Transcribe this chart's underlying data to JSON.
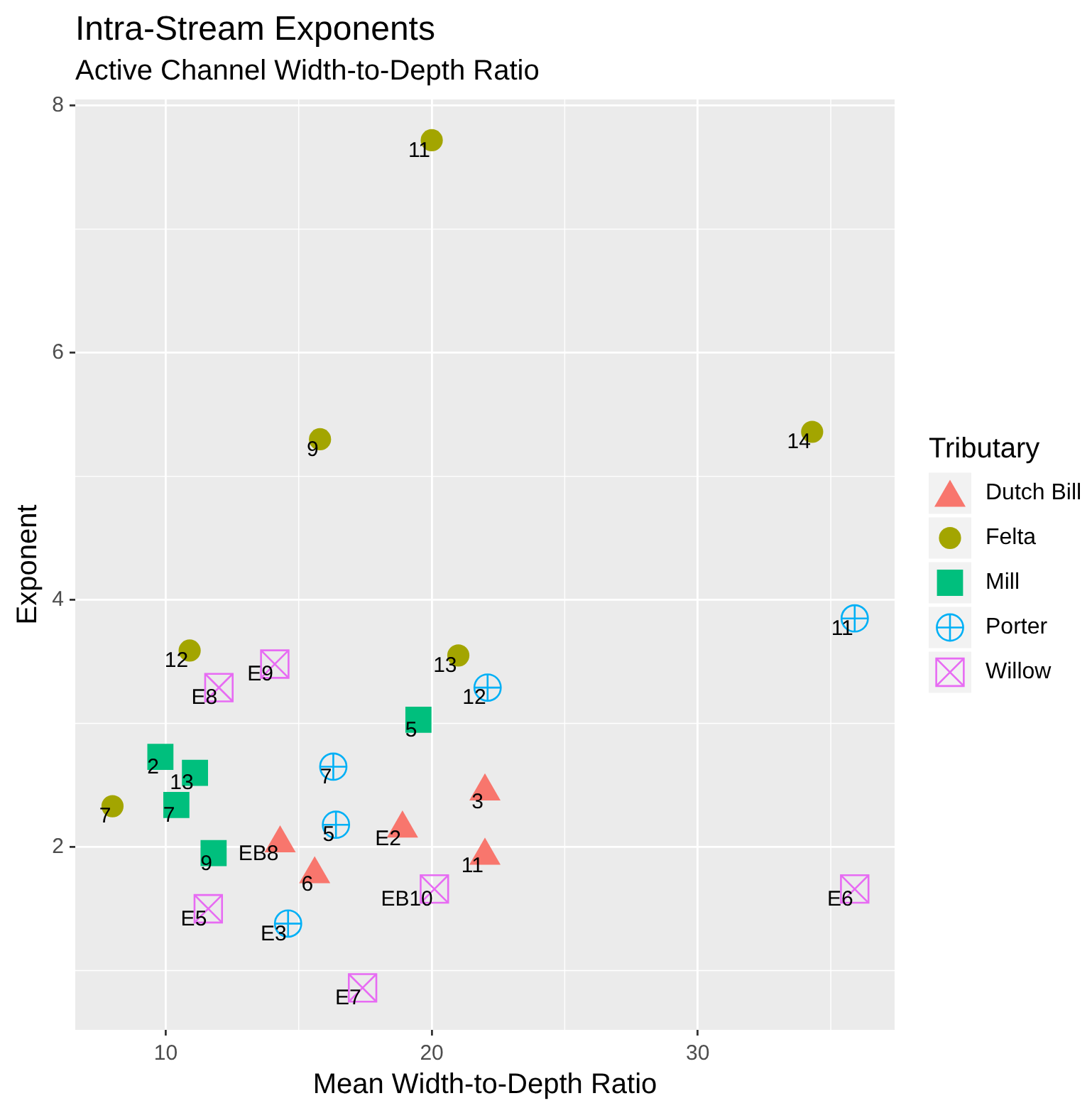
{
  "chart_data": {
    "type": "scatter",
    "title": "Intra-Stream Exponents",
    "subtitle": "Active Channel Width-to-Depth Ratio",
    "xlabel": "Mean Width-to-Depth Ratio",
    "ylabel": "Exponent",
    "legend_title": "Tributary",
    "legend": "right",
    "grid": true,
    "xlim": [
      6.6,
      37.4
    ],
    "ylim": [
      0.52,
      8.05
    ],
    "xticks": [
      10,
      20,
      30
    ],
    "yticks": [
      2,
      4,
      6,
      8
    ],
    "series": [
      {
        "name": "Dutch Bill",
        "color": "#f8766d",
        "marker": "triangle",
        "x": [
          14.3,
          15.6,
          18.9,
          22.0,
          22.0
        ],
        "values": [
          2.03,
          1.78,
          2.15,
          2.45,
          1.93
        ]
      },
      {
        "name": "Felta",
        "color": "#a3a500",
        "marker": "circle",
        "x": [
          20.0,
          15.8,
          34.3,
          10.9,
          21.0,
          8.0
        ],
        "values": [
          7.72,
          5.3,
          5.36,
          3.59,
          3.55,
          2.33
        ]
      },
      {
        "name": "Mill",
        "color": "#00bf7d",
        "marker": "square",
        "x": [
          19.5,
          9.8,
          11.1,
          10.4,
          11.8
        ],
        "values": [
          3.03,
          2.73,
          2.6,
          2.34,
          1.95
        ]
      },
      {
        "name": "Porter",
        "color": "#00b0f6",
        "marker": "circle-plus",
        "x": [
          35.9,
          22.1,
          16.3,
          16.4,
          14.6
        ],
        "values": [
          3.85,
          3.29,
          2.65,
          2.18,
          1.38
        ]
      },
      {
        "name": "Willow",
        "color": "#e76bf3",
        "marker": "square-x",
        "x": [
          14.1,
          12.0,
          20.1,
          35.9,
          11.6,
          17.4
        ],
        "values": [
          3.48,
          3.29,
          1.66,
          1.66,
          1.5,
          0.86
        ]
      }
    ],
    "annotations": [
      {
        "text": "EB8",
        "x": 14.3,
        "y": 2.03
      },
      {
        "text": "6",
        "x": 15.6,
        "y": 1.78
      },
      {
        "text": "E2",
        "x": 18.9,
        "y": 2.15
      },
      {
        "text": "3",
        "x": 22.0,
        "y": 2.45
      },
      {
        "text": "11",
        "x": 22.0,
        "y": 1.93
      },
      {
        "text": "11",
        "x": 20.0,
        "y": 7.72
      },
      {
        "text": "9",
        "x": 15.8,
        "y": 5.3
      },
      {
        "text": "14",
        "x": 34.3,
        "y": 5.36
      },
      {
        "text": "12",
        "x": 10.9,
        "y": 3.59
      },
      {
        "text": "13",
        "x": 21.0,
        "y": 3.55
      },
      {
        "text": "7",
        "x": 8.0,
        "y": 2.33
      },
      {
        "text": "5",
        "x": 19.5,
        "y": 3.03
      },
      {
        "text": "2",
        "x": 9.8,
        "y": 2.73
      },
      {
        "text": "13",
        "x": 11.1,
        "y": 2.6
      },
      {
        "text": "7",
        "x": 10.4,
        "y": 2.34
      },
      {
        "text": "9",
        "x": 11.8,
        "y": 1.95
      },
      {
        "text": "11",
        "x": 35.9,
        "y": 3.85
      },
      {
        "text": "12",
        "x": 22.1,
        "y": 3.29
      },
      {
        "text": "7",
        "x": 16.3,
        "y": 2.65
      },
      {
        "text": "5",
        "x": 16.4,
        "y": 2.18
      },
      {
        "text": "E3",
        "x": 14.6,
        "y": 1.38
      },
      {
        "text": "E9",
        "x": 14.1,
        "y": 3.48
      },
      {
        "text": "E8",
        "x": 12.0,
        "y": 3.29
      },
      {
        "text": "EB10",
        "x": 20.1,
        "y": 1.66
      },
      {
        "text": "E6",
        "x": 35.9,
        "y": 1.66
      },
      {
        "text": "E5",
        "x": 11.6,
        "y": 1.5
      },
      {
        "text": "E7",
        "x": 17.4,
        "y": 0.86
      }
    ]
  }
}
